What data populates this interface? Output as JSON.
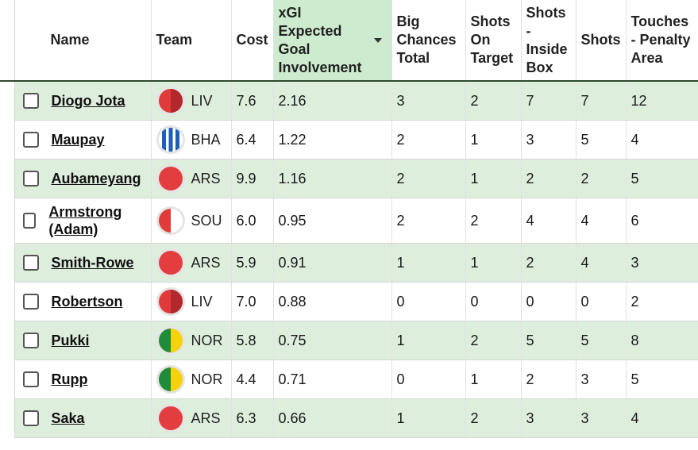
{
  "headers": {
    "name": "Name",
    "team": "Team",
    "cost": "Cost",
    "xgi": "xGI Expected Goal Involvement",
    "big_chances": "Big Chances Total",
    "shots_on_target": "Shots On Target",
    "shots_inside_box": "Shots - Inside Box",
    "shots": "Shots",
    "touches_penalty": "Touches - Penalty Area"
  },
  "colors": {
    "header_sorted_bg": "#cdeccf",
    "row_stripe": "#deeedd",
    "header_border": "#2f4a2f"
  },
  "rows": [
    {
      "name": "Diogo Jota",
      "team": "LIV",
      "badge": "liv",
      "cost": "7.6",
      "xgi": "2.16",
      "big_chances": "3",
      "sot": "2",
      "sib": "7",
      "shots": "7",
      "touches": "12"
    },
    {
      "name": "Maupay",
      "team": "BHA",
      "badge": "bha",
      "cost": "6.4",
      "xgi": "1.22",
      "big_chances": "2",
      "sot": "1",
      "sib": "3",
      "shots": "5",
      "touches": "4"
    },
    {
      "name": "Aubameyang",
      "team": "ARS",
      "badge": "ars",
      "cost": "9.9",
      "xgi": "1.16",
      "big_chances": "2",
      "sot": "1",
      "sib": "2",
      "shots": "2",
      "touches": "5"
    },
    {
      "name": "Armstrong (Adam)",
      "team": "SOU",
      "badge": "sou",
      "cost": "6.0",
      "xgi": "0.95",
      "big_chances": "2",
      "sot": "2",
      "sib": "4",
      "shots": "4",
      "touches": "6"
    },
    {
      "name": "Smith-Rowe",
      "team": "ARS",
      "badge": "ars",
      "cost": "5.9",
      "xgi": "0.91",
      "big_chances": "1",
      "sot": "1",
      "sib": "2",
      "shots": "4",
      "touches": "3"
    },
    {
      "name": "Robertson",
      "team": "LIV",
      "badge": "liv",
      "cost": "7.0",
      "xgi": "0.88",
      "big_chances": "0",
      "sot": "0",
      "sib": "0",
      "shots": "0",
      "touches": "2"
    },
    {
      "name": "Pukki",
      "team": "NOR",
      "badge": "nor",
      "cost": "5.8",
      "xgi": "0.75",
      "big_chances": "1",
      "sot": "2",
      "sib": "5",
      "shots": "5",
      "touches": "8"
    },
    {
      "name": "Rupp",
      "team": "NOR",
      "badge": "nor",
      "cost": "4.4",
      "xgi": "0.71",
      "big_chances": "0",
      "sot": "1",
      "sib": "2",
      "shots": "3",
      "touches": "5"
    },
    {
      "name": "Saka",
      "team": "ARS",
      "badge": "ars",
      "cost": "6.3",
      "xgi": "0.66",
      "big_chances": "1",
      "sot": "2",
      "sib": "3",
      "shots": "3",
      "touches": "4"
    }
  ]
}
